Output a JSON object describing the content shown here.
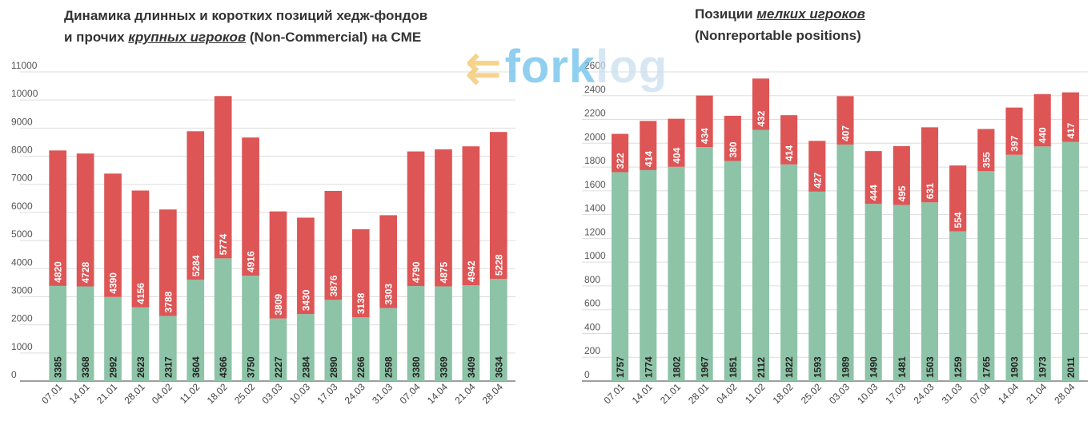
{
  "left_title": {
    "line1": "Динамика длинных и коротких позиций хедж-фондов",
    "line2_prefix": "и прочих ",
    "line2_em": "крупных игроков",
    "line2_suffix": " (Non-Commercial) на CME"
  },
  "right_title": {
    "line1_prefix": "Позиции ",
    "line1_em": "мелких игроков",
    "line2": "(Nonreportable positions)"
  },
  "watermark": {
    "fork": "fork",
    "log": "log"
  },
  "colors": {
    "long": "#8dc3a7",
    "short": "#de5556",
    "grid": "#dddddd",
    "axis": "#666666"
  },
  "chart_data": [
    {
      "type": "bar",
      "stacked": true,
      "title": "Динамика длинных и коротких позиций хедж-фондов и прочих крупных игроков (Non-Commercial) на CME",
      "categories": [
        "07.01",
        "14.01",
        "21.01",
        "28.01",
        "04.02",
        "11.02",
        "18.02",
        "25.02",
        "03.03",
        "10.03",
        "17.03",
        "24.03",
        "31.03",
        "07.04",
        "14.04",
        "21.04",
        "28.04"
      ],
      "series": [
        {
          "values": [
            3385,
            3368,
            2992,
            2623,
            2317,
            3604,
            4366,
            3750,
            2227,
            2384,
            2890,
            2266,
            2598,
            3380,
            3369,
            3409,
            3634
          ],
          "color": "#8dc3a7"
        },
        {
          "values": [
            4820,
            4728,
            4390,
            4156,
            3788,
            5284,
            5774,
            4916,
            3809,
            3430,
            3876,
            3138,
            3303,
            4790,
            4875,
            4942,
            5228
          ],
          "color": "#de5556"
        }
      ],
      "ylim": [
        0,
        11000
      ],
      "yticks": [
        0,
        1000,
        2000,
        3000,
        4000,
        5000,
        6000,
        7000,
        8000,
        9000,
        10000,
        11000
      ],
      "grid": true
    },
    {
      "type": "bar",
      "stacked": true,
      "title": "Позиции мелких игроков (Nonreportable positions)",
      "categories": [
        "07.01",
        "14.01",
        "21.01",
        "28.01",
        "04.02",
        "11.02",
        "18.02",
        "25.02",
        "03.03",
        "10.03",
        "17.03",
        "24.03",
        "31.03",
        "07.04",
        "14.04",
        "21.04",
        "28.04"
      ],
      "series": [
        {
          "values": [
            1757,
            1774,
            1802,
            1967,
            1851,
            2112,
            1822,
            1593,
            1989,
            1490,
            1481,
            1503,
            1259,
            1765,
            1903,
            1973,
            2011
          ],
          "color": "#8dc3a7"
        },
        {
          "values": [
            322,
            414,
            404,
            434,
            380,
            432,
            414,
            427,
            407,
            444,
            495,
            631,
            554,
            355,
            397,
            440,
            417
          ],
          "color": "#de5556"
        }
      ],
      "ylim": [
        0,
        2600
      ],
      "yticks": [
        0,
        200,
        400,
        600,
        800,
        1000,
        1200,
        1400,
        1600,
        1800,
        2000,
        2200,
        2400,
        2600
      ],
      "grid": true
    }
  ]
}
